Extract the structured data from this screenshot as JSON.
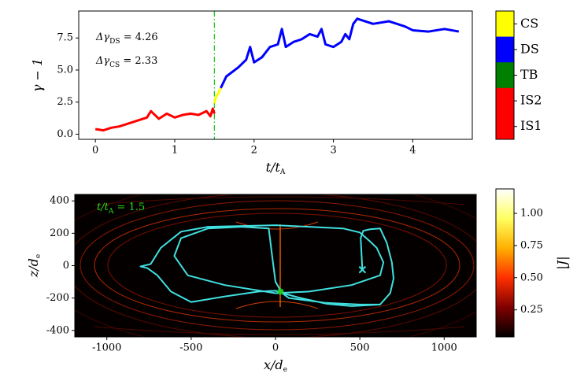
{
  "chart_data": [
    {
      "type": "line",
      "ylabel": {
        "text": "γ − 1"
      },
      "xlabel": {
        "text": "t/t",
        "sub": "A"
      },
      "xlim": [
        -0.21,
        4.75
      ],
      "ylim": [
        -0.4,
        9.6
      ],
      "xticks": [
        0,
        1,
        2,
        3,
        4
      ],
      "yticks": [
        {
          "value": 0,
          "label": "0.0"
        },
        {
          "value": 2.5,
          "label": "2.5"
        },
        {
          "value": 5,
          "label": "5.0"
        },
        {
          "value": 7.5,
          "label": "7.5"
        }
      ],
      "series": [
        {
          "color": "#ff0000",
          "x": [
            0,
            0.1,
            0.2,
            0.3,
            0.4,
            0.5,
            0.6,
            0.65,
            0.7,
            0.8,
            0.9,
            1.0,
            1.1,
            1.2,
            1.3,
            1.4,
            1.45,
            1.48,
            1.5
          ],
          "values": [
            0.4,
            0.3,
            0.5,
            0.6,
            0.8,
            1.0,
            1.2,
            1.3,
            1.8,
            1.2,
            1.6,
            1.3,
            1.5,
            1.6,
            1.5,
            1.8,
            1.4,
            2.0,
            1.6
          ]
        },
        {
          "color": "#ffff00",
          "x": [
            1.5,
            1.52,
            1.55,
            1.58
          ],
          "values": [
            2.4,
            2.9,
            3.2,
            3.6
          ]
        },
        {
          "color": "#0000ff",
          "x": [
            1.58,
            1.65,
            1.8,
            1.9,
            1.95,
            2.0,
            2.1,
            2.2,
            2.3,
            2.35,
            2.4,
            2.5,
            2.6,
            2.7,
            2.8,
            2.85,
            2.9,
            3.0,
            3.1,
            3.15,
            3.2,
            3.25,
            3.3,
            3.5,
            3.7,
            3.9,
            4.0,
            4.2,
            4.4,
            4.58
          ],
          "values": [
            3.6,
            4.5,
            5.2,
            5.8,
            6.8,
            5.6,
            6.0,
            6.8,
            7.0,
            8.2,
            6.8,
            7.2,
            7.4,
            7.8,
            7.6,
            8.2,
            7.0,
            6.8,
            7.2,
            7.8,
            7.4,
            8.6,
            9.0,
            8.6,
            8.8,
            8.4,
            8.1,
            8.0,
            8.2,
            8.0
          ]
        }
      ],
      "vline": {
        "x": 1.5,
        "color": "#22cc22"
      },
      "annotations": [
        {
          "text": "Δγ",
          "sub": "DS",
          "rest": " = 4.26"
        },
        {
          "text": "Δγ",
          "sub": "CS",
          "rest": " = 2.33"
        }
      ],
      "colorbar": {
        "categories": [
          "CS",
          "DS",
          "TB",
          "IS2",
          "IS1"
        ],
        "colors": [
          "#ffff00",
          "#0000ff",
          "#008000",
          "#ff0000",
          "#ff0000"
        ]
      }
    },
    {
      "type": "heatmap",
      "ylabel": {
        "text": "z/d",
        "sub": "e"
      },
      "xlabel": {
        "text": "x/d",
        "sub": "e"
      },
      "xlim": [
        -1190,
        1190
      ],
      "ylim": [
        -440,
        440
      ],
      "xticks": [
        -1000,
        -500,
        0,
        500,
        1000
      ],
      "yticks": [
        -400,
        -200,
        0,
        200,
        400
      ],
      "series": [
        {
          "color": "#40e0e0",
          "x": [
            515,
            505,
            520,
            560,
            620,
            660,
            690,
            700,
            680,
            620,
            450,
            300,
            150,
            60,
            0,
            -100,
            -300,
            -500,
            -620,
            -700,
            -760,
            -800,
            -740,
            -680,
            -560,
            -400,
            -200,
            0,
            200,
            400,
            500,
            560,
            600,
            640,
            620,
            450,
            200,
            0,
            -300,
            -520,
            -600,
            -560,
            -400,
            -200,
            -40,
            -20,
            0,
            40,
            80,
            300,
            500,
            620
          ],
          "values": [
            -25,
            170,
            215,
            225,
            230,
            140,
            20,
            -80,
            -170,
            -240,
            -250,
            -235,
            -200,
            -175,
            -155,
            -160,
            -190,
            -225,
            -160,
            -60,
            -15,
            -5,
            10,
            110,
            210,
            240,
            245,
            250,
            240,
            230,
            205,
            150,
            110,
            20,
            -60,
            -120,
            -160,
            -170,
            -120,
            -60,
            60,
            170,
            230,
            240,
            230,
            60,
            -100,
            -170,
            -200,
            -230,
            -240,
            -240
          ]
        }
      ],
      "markers": [
        {
          "x": 515,
          "y": -25,
          "color": "#40e0e0"
        },
        {
          "x": 30,
          "y": -160,
          "color": "#22cc22"
        }
      ],
      "annotations": [
        {
          "text": "t/t",
          "sub": "A",
          "rest": " = 1.5",
          "color": "#22dd22"
        }
      ],
      "clim": [
        0.04,
        1.19
      ],
      "cticks": [
        {
          "value": 0.25,
          "label": "0.25"
        },
        {
          "value": 0.5,
          "label": "0.50"
        },
        {
          "value": 0.75,
          "label": "0.75"
        },
        {
          "value": 1,
          "label": "1.00"
        }
      ],
      "clabel": "|J|",
      "cmap": [
        "#000000",
        "#800000",
        "#ff3000",
        "#ffb000",
        "#ffff60",
        "#ffffff"
      ]
    }
  ]
}
